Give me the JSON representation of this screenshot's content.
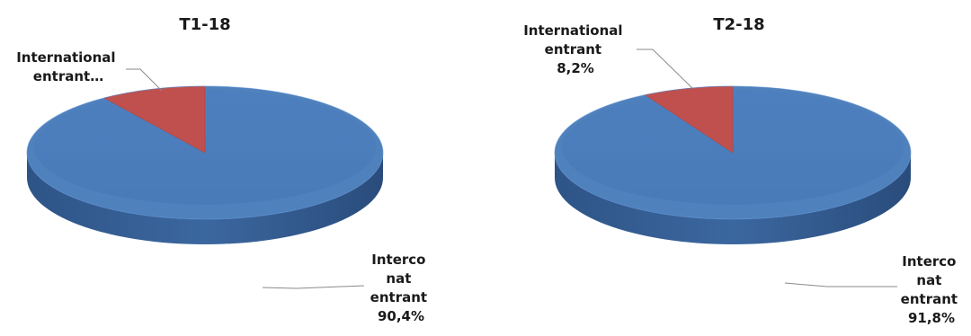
{
  "chart_data": [
    {
      "type": "pie",
      "title": "T1-18",
      "slices": [
        {
          "label_lines": [
            "Interco",
            "nat",
            "entrant",
            "90,4%"
          ],
          "value": 90.4,
          "color": "#4f81bd"
        },
        {
          "label_lines": [
            "International",
            "entrant…"
          ],
          "value": 9.6,
          "color": "#c0504d"
        }
      ]
    },
    {
      "type": "pie",
      "title": "T2-18",
      "slices": [
        {
          "label_lines": [
            "Interco",
            "nat",
            "entrant",
            "91,8%"
          ],
          "value": 91.8,
          "color": "#4f81bd"
        },
        {
          "label_lines": [
            "International",
            "entrant",
            "8,2%"
          ],
          "value": 8.2,
          "color": "#c0504d"
        }
      ]
    }
  ]
}
